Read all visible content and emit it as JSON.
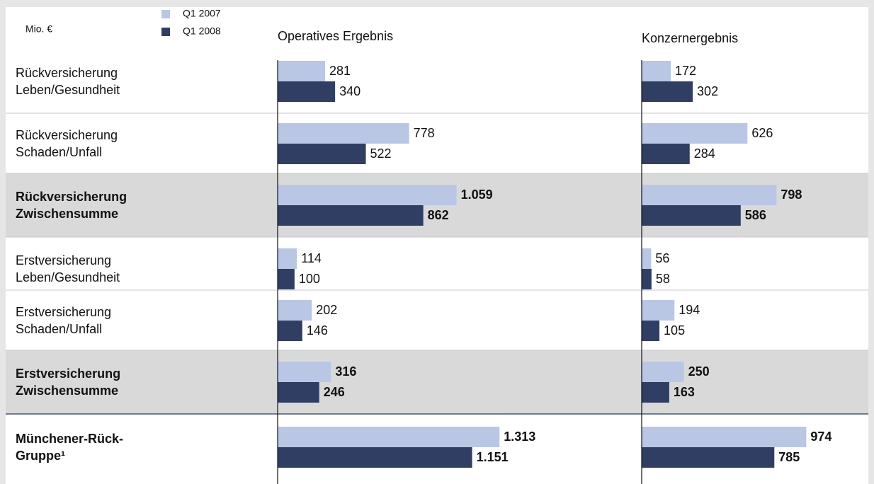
{
  "chart_data": {
    "type": "bar",
    "unit_label": "Mio. €",
    "legend": [
      {
        "name": "Q1 2007",
        "color": "#b9c7e5"
      },
      {
        "name": "Q1 2008",
        "color": "#2f3e62"
      }
    ],
    "categories": [
      "Rückversicherung\nLeben/Gesundheit",
      "Rückversicherung\nSchaden/Unfall",
      "Rückversicherung\nZwischensumme",
      "Erstversicherung\nLeben/Gesundheit",
      "Erstversicherung\nSchaden/Unfall",
      "Erstversicherung\nZwischensumme",
      "Münchener-Rück-\nGruppe¹"
    ],
    "bold": [
      false,
      false,
      true,
      false,
      false,
      true,
      true
    ],
    "shaded": [
      false,
      false,
      true,
      false,
      false,
      true,
      false
    ],
    "xlim": [
      0,
      1400
    ],
    "panels": [
      {
        "title": "Operatives Ergebnis",
        "series": [
          {
            "values": [
              281,
              778,
              1059,
              114,
              202,
              316,
              1313
            ],
            "value_labels": [
              "281",
              "778",
              "1.059",
              "114",
              "202",
              "316",
              "1.313"
            ]
          },
          {
            "values": [
              340,
              522,
              862,
              100,
              146,
              246,
              1151
            ],
            "value_labels": [
              "340",
              "522",
              "862",
              "100",
              "146",
              "246",
              "1.151"
            ]
          }
        ]
      },
      {
        "title": "Konzernergebnis",
        "series": [
          {
            "values": [
              172,
              626,
              798,
              56,
              194,
              250,
              974
            ],
            "value_labels": [
              "172",
              "626",
              "798",
              "56",
              "194",
              "250",
              "974"
            ]
          },
          {
            "values": [
              302,
              284,
              586,
              58,
              105,
              163,
              785
            ],
            "value_labels": [
              "302",
              "284",
              "586",
              "58",
              "105",
              "163",
              "785"
            ]
          }
        ]
      }
    ]
  }
}
